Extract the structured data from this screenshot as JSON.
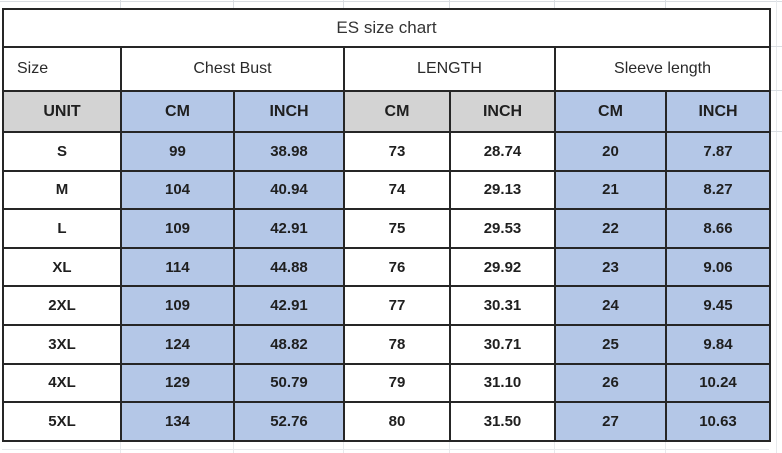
{
  "chart_data": {
    "type": "table",
    "title": "ES size chart",
    "column_groups": [
      {
        "label": "Size",
        "span": 1,
        "fill": "white"
      },
      {
        "label": "Chest Bust",
        "span": 2,
        "fill": "blue"
      },
      {
        "label": "LENGTH",
        "span": 2,
        "fill": "white"
      },
      {
        "label": "Sleeve length",
        "span": 2,
        "fill": "blue"
      }
    ],
    "unit_row": {
      "label": "UNIT",
      "cells": [
        "CM",
        "INCH",
        "CM",
        "INCH",
        "CM",
        "INCH"
      ]
    },
    "rows": [
      {
        "size": "S",
        "cells": [
          "99",
          "38.98",
          "73",
          "28.74",
          "20",
          "7.87"
        ]
      },
      {
        "size": "M",
        "cells": [
          "104",
          "40.94",
          "74",
          "29.13",
          "21",
          "8.27"
        ]
      },
      {
        "size": "L",
        "cells": [
          "109",
          "42.91",
          "75",
          "29.53",
          "22",
          "8.66"
        ]
      },
      {
        "size": "XL",
        "cells": [
          "114",
          "44.88",
          "76",
          "29.92",
          "23",
          "9.06"
        ]
      },
      {
        "size": "2XL",
        "cells": [
          "109",
          "42.91",
          "77",
          "30.31",
          "24",
          "9.45"
        ]
      },
      {
        "size": "3XL",
        "cells": [
          "124",
          "48.82",
          "78",
          "30.71",
          "25",
          "9.84"
        ]
      },
      {
        "size": "4XL",
        "cells": [
          "129",
          "50.79",
          "79",
          "31.10",
          "26",
          "10.24"
        ]
      },
      {
        "size": "5XL",
        "cells": [
          "134",
          "52.76",
          "80",
          "31.50",
          "27",
          "10.63"
        ]
      }
    ],
    "layout_hints": {
      "grid": "all cell borders, dark",
      "fill_pattern_data_columns": [
        "white",
        "blue",
        "blue",
        "white",
        "white",
        "blue",
        "blue"
      ],
      "fill_pattern_unit_row": [
        "gray",
        "blue",
        "blue",
        "gray",
        "gray",
        "blue",
        "blue"
      ]
    }
  },
  "colors": {
    "blue_fill": "#b4c7e7",
    "gray_fill": "#d3d3d3",
    "border": "#262626",
    "text": "#1f1f1f",
    "gridline": "#d9dde2"
  }
}
